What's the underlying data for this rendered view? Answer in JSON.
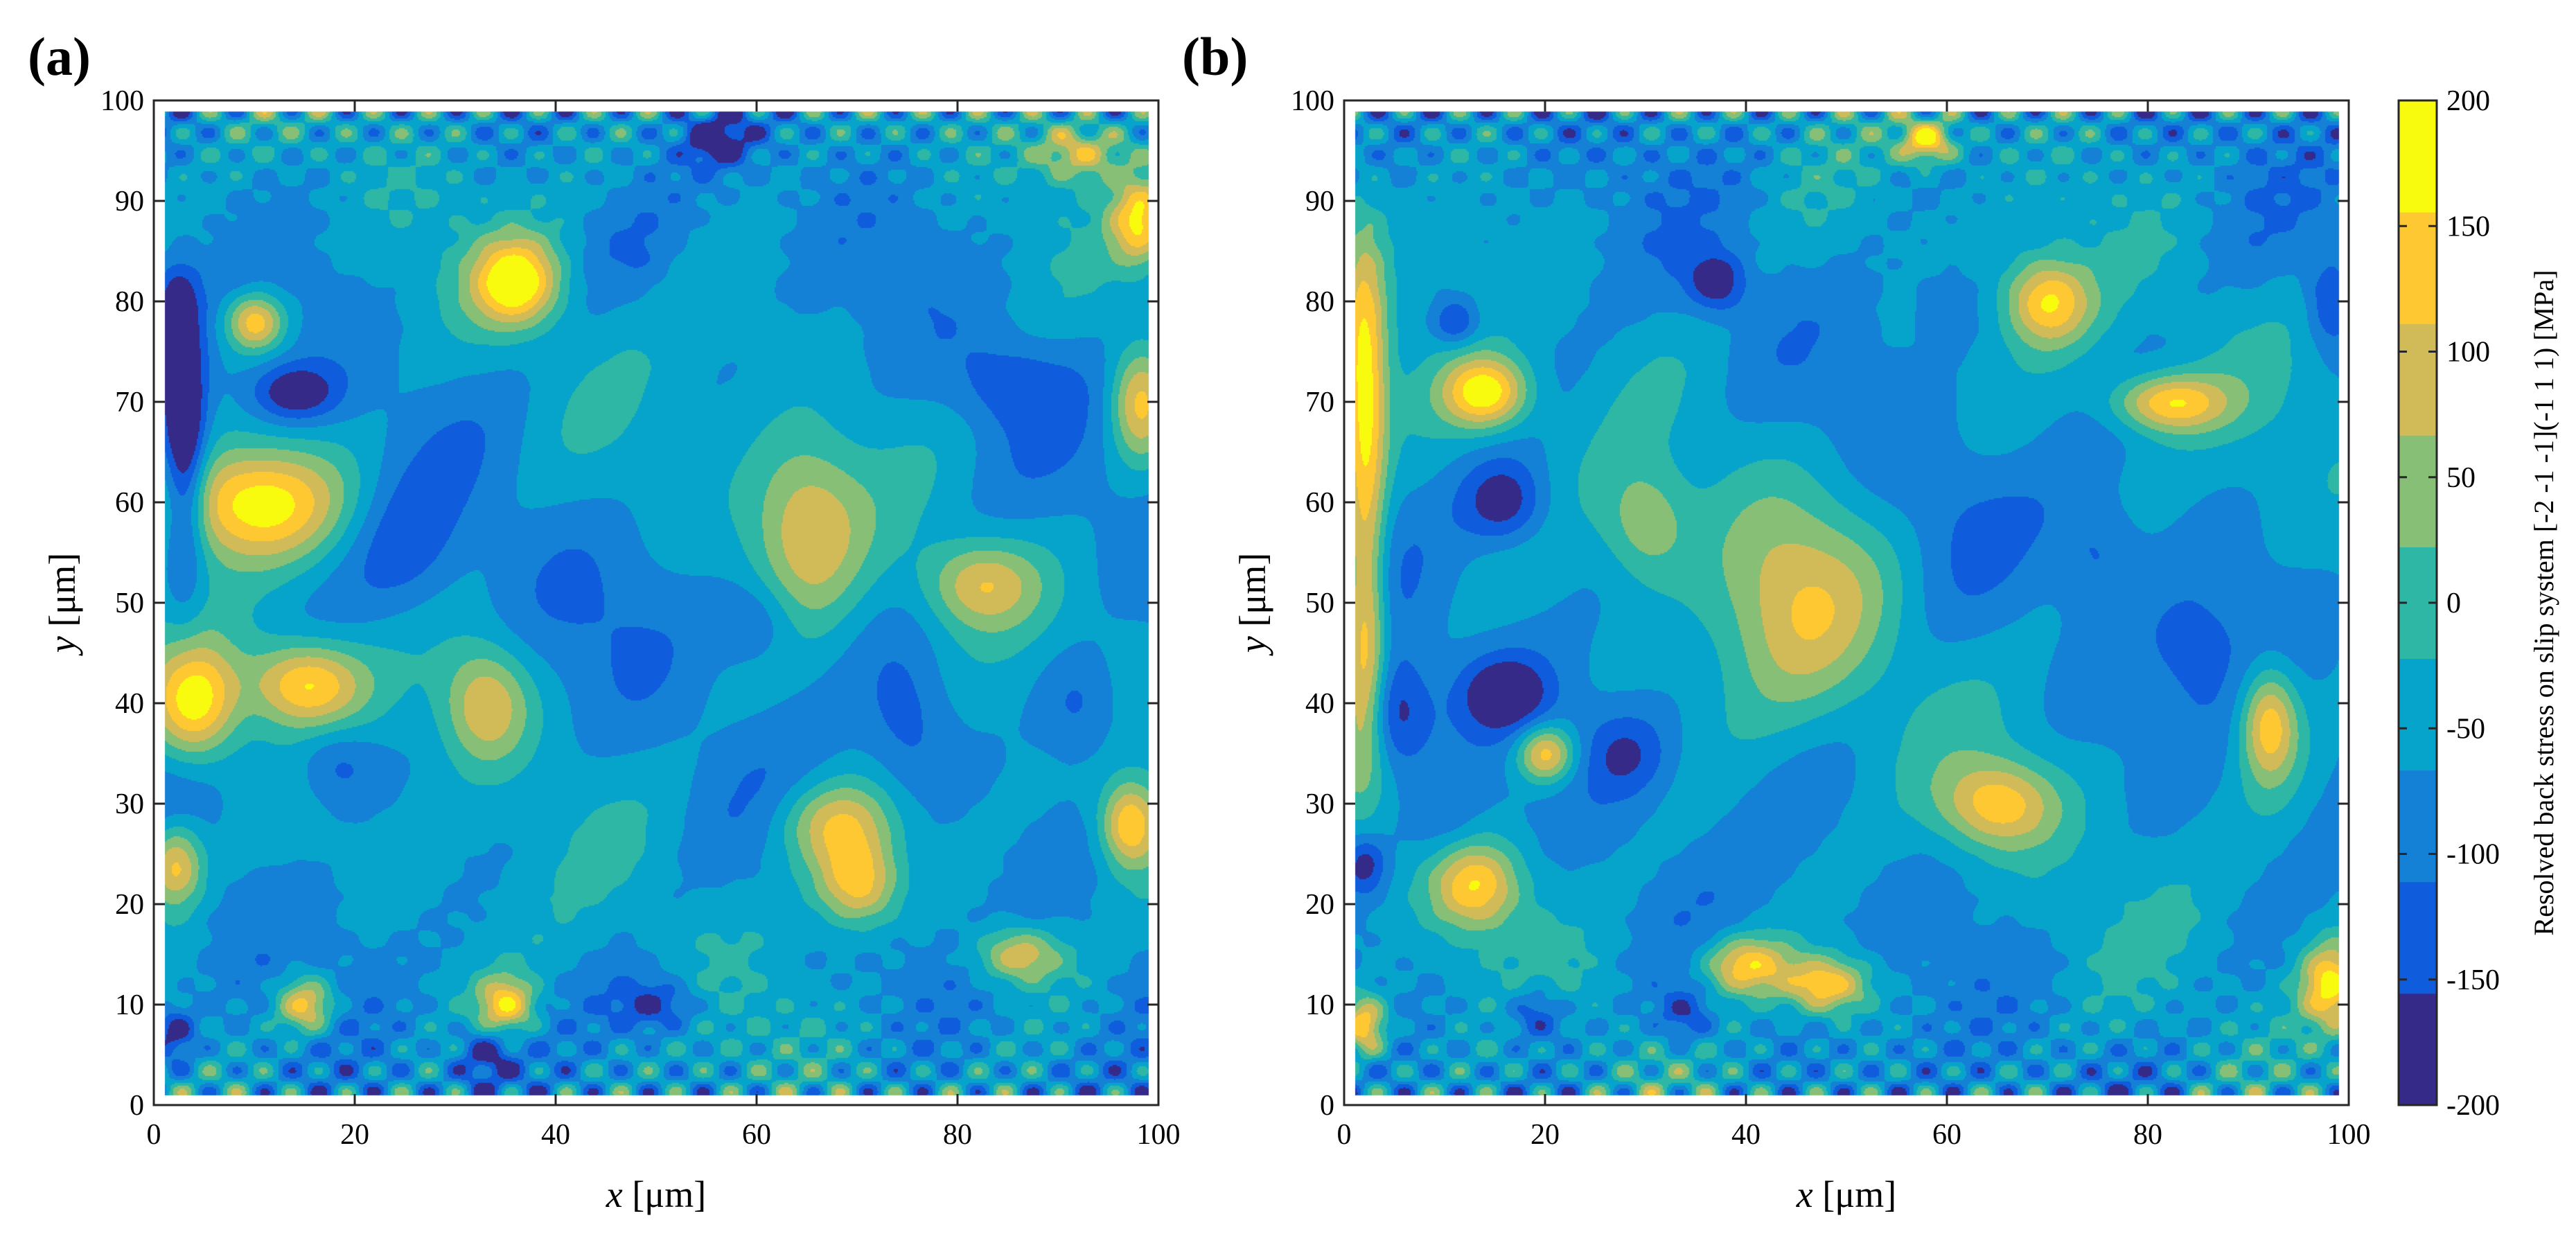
{
  "chart_data": [
    {
      "type": "heatmap",
      "panel_label": "(a)",
      "xlabel_var": "x",
      "xlabel_unit": " [μm]",
      "ylabel_var": "y",
      "ylabel_unit": " [μm]",
      "xlim": [
        0,
        100
      ],
      "ylim": [
        0,
        100
      ],
      "xticks": [
        "0",
        "20",
        "40",
        "60",
        "80",
        "100"
      ],
      "yticks": [
        "0",
        "10",
        "20",
        "30",
        "40",
        "50",
        "60",
        "70",
        "80",
        "90",
        "100"
      ],
      "data_extent": {
        "x": [
          1,
          99
        ],
        "y": [
          1,
          99
        ]
      },
      "blobs": [
        {
          "x": 3,
          "y": 70,
          "sx": 1.5,
          "sy": 7,
          "v": -190
        },
        {
          "x": 3,
          "y": 60,
          "sx": 1.5,
          "sy": 8,
          "v": -175
        },
        {
          "x": 2,
          "y": 80,
          "sx": 1.5,
          "sy": 3,
          "v": -160
        },
        {
          "x": 14,
          "y": 71,
          "sx": 3,
          "sy": 2,
          "v": -195
        },
        {
          "x": 10,
          "y": 60,
          "sx": 6,
          "sy": 4,
          "v": 180
        },
        {
          "x": 4,
          "y": 40,
          "sx": 3,
          "sy": 4,
          "v": 170
        },
        {
          "x": 15,
          "y": 42,
          "sx": 4,
          "sy": 3,
          "v": 160
        },
        {
          "x": 2,
          "y": 24,
          "sx": 2,
          "sy": 3,
          "v": 150
        },
        {
          "x": 10,
          "y": 78,
          "sx": 2,
          "sy": 2,
          "v": 150
        },
        {
          "x": 36,
          "y": 82,
          "sx": 3,
          "sy": 3,
          "v": 190
        },
        {
          "x": 33,
          "y": 40,
          "sx": 3,
          "sy": 4,
          "v": 100
        },
        {
          "x": 56,
          "y": 96,
          "sx": 2,
          "sy": 1.5,
          "v": -200
        },
        {
          "x": 65,
          "y": 58,
          "sx": 4,
          "sy": 6,
          "v": 100
        },
        {
          "x": 70,
          "y": 22,
          "sx": 3,
          "sy": 3,
          "v": 150
        },
        {
          "x": 97,
          "y": 28,
          "sx": 2,
          "sy": 3,
          "v": 150
        },
        {
          "x": 98,
          "y": 88,
          "sx": 2,
          "sy": 3,
          "v": 140
        },
        {
          "x": 98,
          "y": 70,
          "sx": 2,
          "sy": 4,
          "v": 120
        },
        {
          "x": 45,
          "y": 50,
          "sx": 6,
          "sy": 6,
          "v": -80
        },
        {
          "x": 25,
          "y": 55,
          "sx": 4,
          "sy": 5,
          "v": -130
        },
        {
          "x": 50,
          "y": 10,
          "sx": 3,
          "sy": 2,
          "v": -180
        },
        {
          "x": 33,
          "y": 5,
          "sx": 2,
          "sy": 2,
          "v": -180
        },
        {
          "x": 2,
          "y": 7,
          "sx": 1.5,
          "sy": 2,
          "v": -190
        },
        {
          "x": 18,
          "y": 34,
          "sx": 3,
          "sy": 3,
          "v": -150
        },
        {
          "x": 75,
          "y": 38,
          "sx": 3,
          "sy": 5,
          "v": -140
        },
        {
          "x": 68,
          "y": 28,
          "sx": 4,
          "sy": 3,
          "v": 110
        },
        {
          "x": 82,
          "y": 52,
          "sx": 4,
          "sy": 3,
          "v": 90
        },
        {
          "x": 85,
          "y": 72,
          "sx": 4,
          "sy": 3,
          "v": -130
        },
        {
          "x": 15,
          "y": 10,
          "sx": 2,
          "sy": 2,
          "v": 150
        },
        {
          "x": 35,
          "y": 10,
          "sx": 2,
          "sy": 2,
          "v": 140
        },
        {
          "x": 86,
          "y": 15,
          "sx": 3,
          "sy": 2,
          "v": 120
        },
        {
          "x": 48,
          "y": 85,
          "sx": 3,
          "sy": 3,
          "v": -90
        },
        {
          "x": 60,
          "y": 48,
          "sx": 3,
          "sy": 3,
          "v": -140
        },
        {
          "x": 92,
          "y": 40,
          "sx": 3,
          "sy": 4,
          "v": -150
        },
        {
          "x": 92,
          "y": 95,
          "sx": 3,
          "sy": 2,
          "v": 100
        }
      ]
    },
    {
      "type": "heatmap",
      "panel_label": "(b)",
      "xlabel_var": "x",
      "xlabel_unit": " [μm]",
      "ylabel_var": "y",
      "ylabel_unit": " [μm]",
      "xlim": [
        0,
        100
      ],
      "ylim": [
        0,
        100
      ],
      "xticks": [
        "0",
        "20",
        "40",
        "60",
        "80",
        "100"
      ],
      "yticks": [
        "0",
        "10",
        "20",
        "30",
        "40",
        "50",
        "60",
        "70",
        "80",
        "90",
        "100"
      ],
      "data_extent": {
        "x": [
          1,
          99
        ],
        "y": [
          1,
          99
        ]
      },
      "blobs": [
        {
          "x": 2,
          "y": 70,
          "sx": 1.5,
          "sy": 12,
          "v": 170
        },
        {
          "x": 2,
          "y": 45,
          "sx": 1.5,
          "sy": 8,
          "v": 140
        },
        {
          "x": 14,
          "y": 71,
          "sx": 3,
          "sy": 2.5,
          "v": 190
        },
        {
          "x": 16,
          "y": 60,
          "sx": 3,
          "sy": 3,
          "v": -200
        },
        {
          "x": 5,
          "y": 39,
          "sx": 2.5,
          "sy": 4,
          "v": -200
        },
        {
          "x": 16,
          "y": 41,
          "sx": 3,
          "sy": 2.5,
          "v": -195
        },
        {
          "x": 37,
          "y": 82,
          "sx": 2,
          "sy": 2,
          "v": -195
        },
        {
          "x": 11,
          "y": 78,
          "sx": 1.5,
          "sy": 1.5,
          "v": -170
        },
        {
          "x": 58,
          "y": 96,
          "sx": 2,
          "sy": 1.5,
          "v": 160
        },
        {
          "x": 45,
          "y": 50,
          "sx": 6,
          "sy": 8,
          "v": 80
        },
        {
          "x": 30,
          "y": 58,
          "sx": 3,
          "sy": 4,
          "v": 60
        },
        {
          "x": 82,
          "y": 70,
          "sx": 4,
          "sy": 2,
          "v": 150
        },
        {
          "x": 92,
          "y": 38,
          "sx": 2,
          "sy": 4,
          "v": 150
        },
        {
          "x": 85,
          "y": 45,
          "sx": 4,
          "sy": 5,
          "v": -120
        },
        {
          "x": 65,
          "y": 30,
          "sx": 4,
          "sy": 3,
          "v": 120
        },
        {
          "x": 13,
          "y": 22,
          "sx": 3,
          "sy": 3,
          "v": 130
        },
        {
          "x": 48,
          "y": 12,
          "sx": 3,
          "sy": 2,
          "v": 160
        },
        {
          "x": 40,
          "y": 14,
          "sx": 3,
          "sy": 2,
          "v": 140
        },
        {
          "x": 10,
          "y": 28,
          "sx": 3,
          "sy": 3,
          "v": -120
        },
        {
          "x": 70,
          "y": 80,
          "sx": 3,
          "sy": 3,
          "v": 150
        },
        {
          "x": 98,
          "y": 12,
          "sx": 2,
          "sy": 3,
          "v": 160
        },
        {
          "x": 2,
          "y": 8,
          "sx": 1.5,
          "sy": 2,
          "v": 160
        },
        {
          "x": 19,
          "y": 9,
          "sx": 2,
          "sy": 2,
          "v": -180
        },
        {
          "x": 34,
          "y": 9,
          "sx": 2,
          "sy": 2,
          "v": -170
        },
        {
          "x": 98,
          "y": 80,
          "sx": 1.5,
          "sy": 3,
          "v": -150
        },
        {
          "x": 60,
          "y": 60,
          "sx": 5,
          "sy": 5,
          "v": -90
        },
        {
          "x": 28,
          "y": 35,
          "sx": 3,
          "sy": 3,
          "v": -150
        },
        {
          "x": 75,
          "y": 55,
          "sx": 3,
          "sy": 4,
          "v": -130
        },
        {
          "x": 20,
          "y": 35,
          "sx": 2,
          "sy": 2,
          "v": 150
        },
        {
          "x": 60,
          "y": 80,
          "sx": 3,
          "sy": 3,
          "v": -100
        },
        {
          "x": 2,
          "y": 24,
          "sx": 1.5,
          "sy": 2,
          "v": -180
        }
      ]
    }
  ],
  "colorbar": {
    "label": "Resolved back stress on slip system [-2 -1 -1](-1 1 1) [MPa]",
    "range": [
      -200,
      200
    ],
    "ticks": [
      "200",
      "150",
      "100",
      "50",
      "0",
      "-50",
      "-100",
      "-150",
      "-200"
    ],
    "colors": [
      "#352a87",
      "#0f5cdd",
      "#1481d6",
      "#06a4ca",
      "#2eb7a4",
      "#87bf77",
      "#d1bb59",
      "#fec832",
      "#f9fb0e"
    ]
  }
}
